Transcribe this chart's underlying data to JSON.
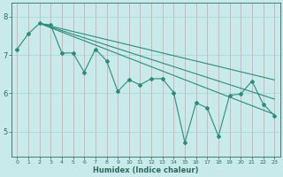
{
  "x": [
    0,
    1,
    2,
    3,
    4,
    5,
    6,
    7,
    8,
    9,
    10,
    11,
    12,
    13,
    14,
    15,
    16,
    17,
    18,
    19,
    20,
    21,
    22,
    23
  ],
  "y_main": [
    7.15,
    7.55,
    7.82,
    7.78,
    7.05,
    7.05,
    6.55,
    7.15,
    6.85,
    6.05,
    6.35,
    6.22,
    6.38,
    6.38,
    6.02,
    4.72,
    5.75,
    5.62,
    4.88,
    5.95,
    5.98,
    6.32,
    5.72,
    5.42
  ],
  "trend1_x": [
    2,
    23
  ],
  "trend1_y": [
    7.82,
    5.45
  ],
  "trend2_x": [
    2,
    23
  ],
  "trend2_y": [
    7.82,
    5.85
  ],
  "trend3_x": [
    2,
    23
  ],
  "trend3_y": [
    7.82,
    6.35
  ],
  "line_color": "#2e8b7a",
  "bg_color": "#c8eaea",
  "grid_color": "#a8d4d4",
  "grid_minor_color": "#bcdede",
  "tick_label_color": "#2e6b5a",
  "spine_color": "#2e6b5a",
  "xlabel": "Humidex (Indice chaleur)",
  "ylim": [
    4.35,
    8.35
  ],
  "xlim": [
    -0.5,
    23.5
  ],
  "yticks": [
    5,
    6,
    7,
    8
  ],
  "xticks": [
    0,
    1,
    2,
    3,
    4,
    5,
    6,
    7,
    8,
    9,
    10,
    11,
    12,
    13,
    14,
    15,
    16,
    17,
    18,
    19,
    20,
    21,
    22,
    23
  ]
}
